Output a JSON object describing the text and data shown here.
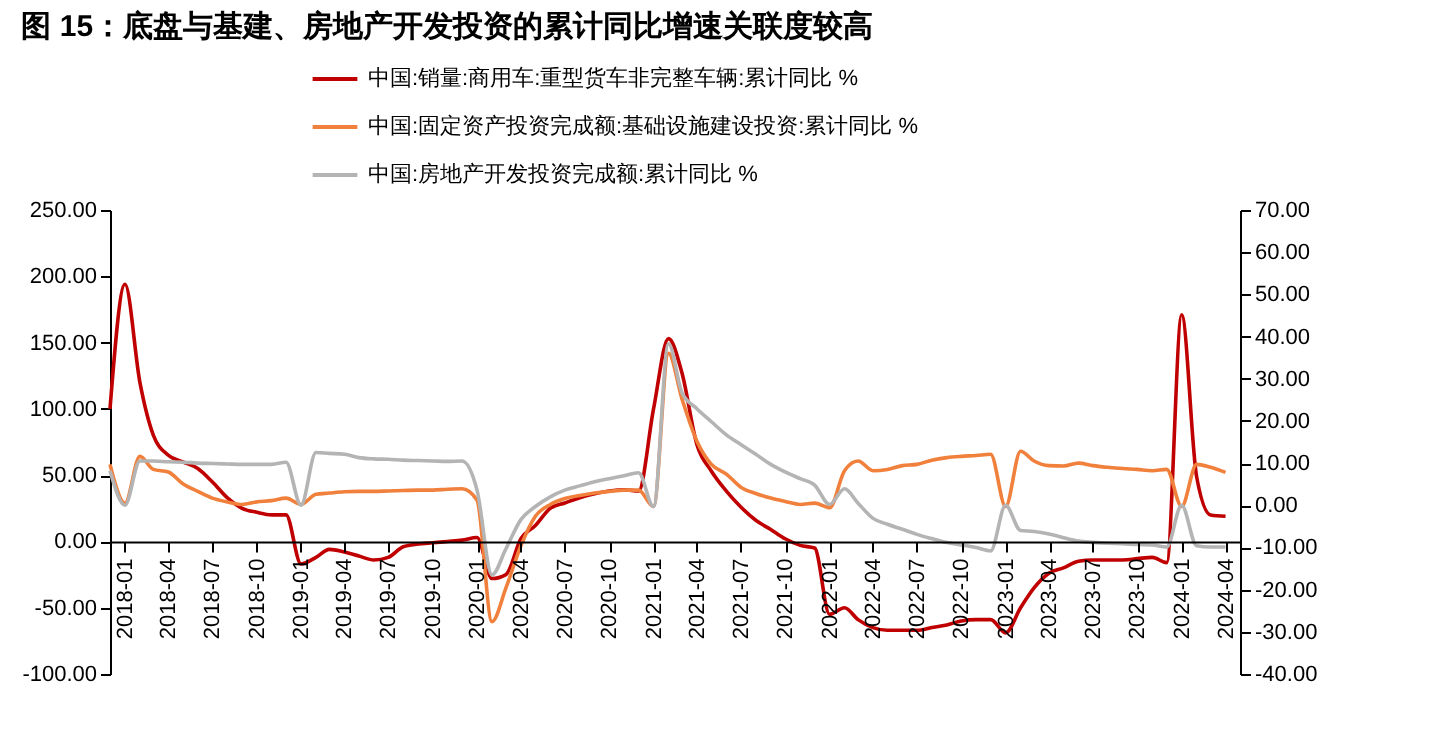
{
  "chart_data": {
    "type": "line",
    "title": "图 15：底盘与基建、房地产开发投资的累计同比增速关联度较高",
    "x": [
      "2017-12",
      "2018-01",
      "2018-02",
      "2018-03",
      "2018-04",
      "2018-05",
      "2018-06",
      "2018-07",
      "2018-08",
      "2018-09",
      "2018-10",
      "2018-11",
      "2018-12",
      "2019-01",
      "2019-02",
      "2019-03",
      "2019-04",
      "2019-05",
      "2019-06",
      "2019-07",
      "2019-08",
      "2019-09",
      "2019-10",
      "2019-11",
      "2019-12",
      "2020-01",
      "2020-02",
      "2020-03",
      "2020-04",
      "2020-05",
      "2020-06",
      "2020-07",
      "2020-08",
      "2020-09",
      "2020-10",
      "2020-11",
      "2020-12",
      "2021-01",
      "2021-02",
      "2021-03",
      "2021-04",
      "2021-05",
      "2021-06",
      "2021-07",
      "2021-08",
      "2021-09",
      "2021-10",
      "2021-11",
      "2021-12",
      "2022-01",
      "2022-02",
      "2022-03",
      "2022-04",
      "2022-05",
      "2022-06",
      "2022-07",
      "2022-08",
      "2022-09",
      "2022-10",
      "2022-11",
      "2022-12",
      "2023-01",
      "2023-02",
      "2023-03",
      "2023-04",
      "2023-05",
      "2023-06",
      "2023-07",
      "2023-08",
      "2023-09",
      "2023-10",
      "2023-11",
      "2023-12",
      "2024-01",
      "2024-02",
      "2024-03",
      "2024-04"
    ],
    "series": [
      {
        "name": "中国:销量:商用车:重型货车非完整车辆:累计同比 %",
        "color": "#c00000",
        "values": [
          100,
          194,
          120,
          80,
          65,
          60,
          55,
          45,
          33,
          25,
          22,
          20,
          20,
          -17,
          -12,
          -6,
          -8,
          -11,
          -14,
          -12,
          -4,
          -2,
          -1,
          0,
          1,
          3,
          -28,
          -25,
          2,
          12,
          25,
          29,
          33,
          36,
          38,
          39,
          38,
          100,
          153,
          127,
          73,
          53,
          38,
          26,
          16,
          9,
          2,
          -3,
          -5,
          -55,
          -50,
          -59,
          -65,
          -67,
          -67,
          -67,
          -65,
          -63,
          -60,
          -59,
          -59,
          -69,
          -50,
          -35,
          -24,
          -20,
          -15,
          -14,
          -14,
          -14,
          -13,
          -12,
          -16,
          171,
          49,
          20,
          19
        ]
      },
      {
        "name": "中国:固定资产投资完成额:基础设施建设投资:累计同比 %",
        "color": "#f0803c",
        "axis": "y2",
        "values": [
          9.7,
          0.5,
          11.6,
          8.5,
          7.9,
          5.1,
          3.3,
          1.7,
          0.8,
          0.2,
          0.8,
          1.1,
          1.7,
          0.2,
          2.6,
          2.9,
          3.2,
          3.3,
          3.3,
          3.4,
          3.5,
          3.6,
          3.6,
          3.8,
          3.9,
          1.2,
          -27.6,
          -19.6,
          -9.6,
          -2.6,
          0.2,
          1.6,
          2.3,
          2.9,
          3.3,
          3.6,
          3.6,
          -0.3,
          36,
          25.2,
          15.2,
          9.7,
          7.4,
          4.3,
          2.8,
          1.7,
          0.9,
          0.2,
          0.5,
          -0.6,
          8.2,
          10.5,
          8.2,
          8.5,
          9.4,
          9.7,
          10.7,
          11.3,
          11.6,
          11.8,
          12.1,
          -0.3,
          12.8,
          10.5,
          9.4,
          9.3,
          10,
          9.4,
          9,
          8.7,
          8.5,
          8.2,
          8.5,
          -0.3,
          9.7,
          9,
          7.8
        ]
      },
      {
        "name": "中国:房地产开发投资完成额:累计同比 %",
        "color": "#b4b4b4",
        "axis": "y2",
        "values": [
          8.2,
          0,
          10.5,
          10.5,
          10.3,
          10.2,
          10,
          9.9,
          9.8,
          9.7,
          9.7,
          9.7,
          10.2,
          0,
          12.5,
          12.3,
          12.1,
          11.3,
          11,
          10.9,
          10.7,
          10.6,
          10.5,
          10.4,
          10.5,
          3.6,
          -16.5,
          -10.3,
          -3.4,
          -0.3,
          2,
          3.6,
          4.6,
          5.6,
          6.3,
          7,
          7.7,
          -0.3,
          38.3,
          26.7,
          22.9,
          19.8,
          16.7,
          14.4,
          12.1,
          9.7,
          7.9,
          6.3,
          4.8,
          0.2,
          3.9,
          0.5,
          -3.1,
          -4.5,
          -5.7,
          -6.9,
          -7.9,
          -8.8,
          -9.4,
          -10,
          -10.8,
          0,
          -6,
          -6.2,
          -6.8,
          -7.7,
          -8.5,
          -8.8,
          -9,
          -9.1,
          -9.3,
          -9.4,
          -9.9,
          0,
          -9.6,
          -9.9,
          -9.9
        ]
      }
    ],
    "xlim": [
      "2017-12",
      "2024-05"
    ],
    "xticks": [
      "2018-01",
      "2018-04",
      "2018-07",
      "2018-10",
      "2019-01",
      "2019-04",
      "2019-07",
      "2019-10",
      "2020-01",
      "2020-04",
      "2020-07",
      "2020-10",
      "2021-01",
      "2021-04",
      "2021-07",
      "2021-10",
      "2022-01",
      "2022-04",
      "2022-07",
      "2022-10",
      "2023-01",
      "2023-04",
      "2023-07",
      "2023-10",
      "2024-01",
      "2024-04"
    ],
    "ylim": [
      -100,
      250
    ],
    "yticks": [
      {
        "value": -100,
        "label": "-100.00"
      },
      {
        "value": -50,
        "label": "-50.00"
      },
      {
        "value": 0,
        "label": "0.00"
      },
      {
        "value": 50,
        "label": "50.00"
      },
      {
        "value": 100,
        "label": "100.00"
      },
      {
        "value": 150,
        "label": "150.00"
      },
      {
        "value": 200,
        "label": "200.00"
      },
      {
        "value": 250,
        "label": "250.00"
      }
    ],
    "y2lim": [
      -40,
      70
    ],
    "y2ticks": [
      {
        "value": -40,
        "label": "-40.00"
      },
      {
        "value": -30,
        "label": "-30.00"
      },
      {
        "value": -20,
        "label": "-20.00"
      },
      {
        "value": -10,
        "label": "-10.00"
      },
      {
        "value": 0,
        "label": "0.00"
      },
      {
        "value": 10,
        "label": "10.00"
      },
      {
        "value": 20,
        "label": "20.00"
      },
      {
        "value": 30,
        "label": "30.00"
      },
      {
        "value": 40,
        "label": "40.00"
      },
      {
        "value": 50,
        "label": "50.00"
      },
      {
        "value": 60,
        "label": "60.00"
      },
      {
        "value": 70,
        "label": "70.00"
      }
    ],
    "grid": false,
    "legend": "top"
  }
}
